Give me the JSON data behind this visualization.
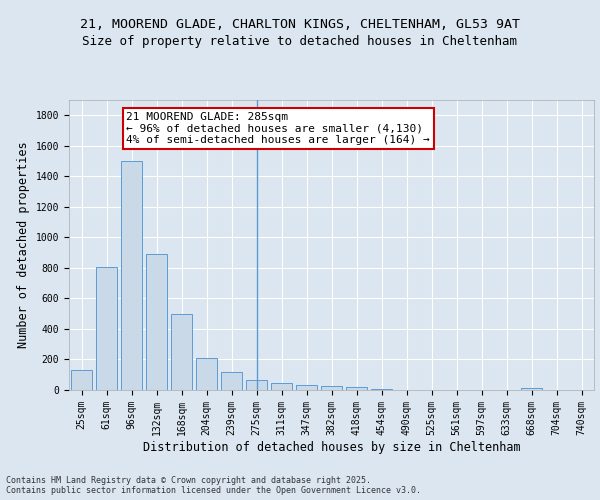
{
  "title_line1": "21, MOOREND GLADE, CHARLTON KINGS, CHELTENHAM, GL53 9AT",
  "title_line2": "Size of property relative to detached houses in Cheltenham",
  "xlabel": "Distribution of detached houses by size in Cheltenham",
  "ylabel": "Number of detached properties",
  "categories": [
    "25sqm",
    "61sqm",
    "96sqm",
    "132sqm",
    "168sqm",
    "204sqm",
    "239sqm",
    "275sqm",
    "311sqm",
    "347sqm",
    "382sqm",
    "418sqm",
    "454sqm",
    "490sqm",
    "525sqm",
    "561sqm",
    "597sqm",
    "633sqm",
    "668sqm",
    "704sqm",
    "740sqm"
  ],
  "values": [
    130,
    805,
    1500,
    890,
    500,
    210,
    115,
    65,
    48,
    33,
    28,
    22,
    5,
    3,
    2,
    1,
    1,
    1,
    10,
    1,
    0
  ],
  "bar_color": "#c9d9e8",
  "bar_edge_color": "#5b9bd5",
  "highlight_bar_index": 7,
  "annotation_text": "21 MOOREND GLADE: 285sqm\n← 96% of detached houses are smaller (4,130)\n4% of semi-detached houses are larger (164) →",
  "annotation_box_color": "#ffffff",
  "annotation_border_color": "#cc0000",
  "ylim": [
    0,
    1900
  ],
  "yticks": [
    0,
    200,
    400,
    600,
    800,
    1000,
    1200,
    1400,
    1600,
    1800
  ],
  "bg_color": "#dce6f0",
  "plot_bg_color": "#dce6f0",
  "footer_text": "Contains HM Land Registry data © Crown copyright and database right 2025.\nContains public sector information licensed under the Open Government Licence v3.0.",
  "grid_color": "#ffffff",
  "title_fontsize": 9.5,
  "subtitle_fontsize": 9,
  "axis_label_fontsize": 8.5,
  "tick_fontsize": 7,
  "annotation_fontsize": 8,
  "footer_fontsize": 6
}
